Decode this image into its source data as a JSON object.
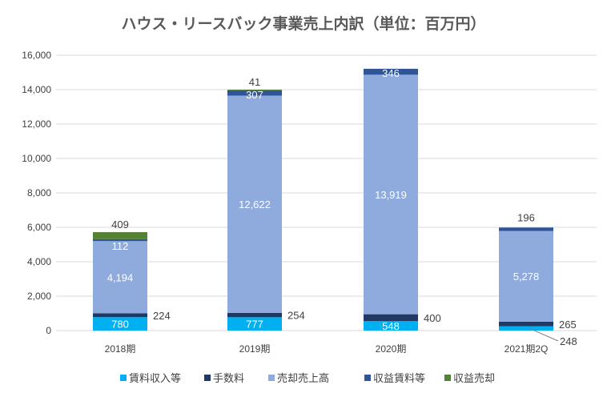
{
  "chart_data": {
    "type": "bar",
    "stacked": true,
    "title": "ハウス・リースバック事業売上内訳（単位：百万円）",
    "categories": [
      "2018期",
      "2019期",
      "2020期",
      "2021期2Q"
    ],
    "ylim": [
      0,
      16000
    ],
    "yticks": [
      0,
      2000,
      4000,
      6000,
      8000,
      10000,
      12000,
      14000,
      16000
    ],
    "ytick_labels": [
      "0",
      "2,000",
      "4,000",
      "6,000",
      "8,000",
      "10,000",
      "12,000",
      "14,000",
      "16,000"
    ],
    "grid": true,
    "legend": "bottom",
    "series": [
      {
        "name": "賃料収入等",
        "color": "#00b0f0",
        "values": [
          780,
          777,
          548,
          248
        ],
        "labels": [
          "780",
          "777",
          "548",
          "248"
        ]
      },
      {
        "name": "手数料",
        "color": "#203864",
        "values": [
          224,
          254,
          400,
          265
        ],
        "labels": [
          "224",
          "254",
          "400",
          "265"
        ]
      },
      {
        "name": "売却売上高",
        "color": "#8faadc",
        "values": [
          4194,
          12622,
          13919,
          5278
        ],
        "labels": [
          "4,194",
          "12,622",
          "13,919",
          "5,278"
        ]
      },
      {
        "name": "収益賃料等",
        "color": "#2f5597",
        "values": [
          112,
          307,
          346,
          196
        ],
        "labels": [
          "112",
          "307",
          "346",
          "196"
        ]
      },
      {
        "name": "収益売却",
        "color": "#548235",
        "values": [
          409,
          41,
          0,
          0
        ],
        "labels": [
          "409",
          "41",
          "",
          ""
        ]
      }
    ]
  }
}
